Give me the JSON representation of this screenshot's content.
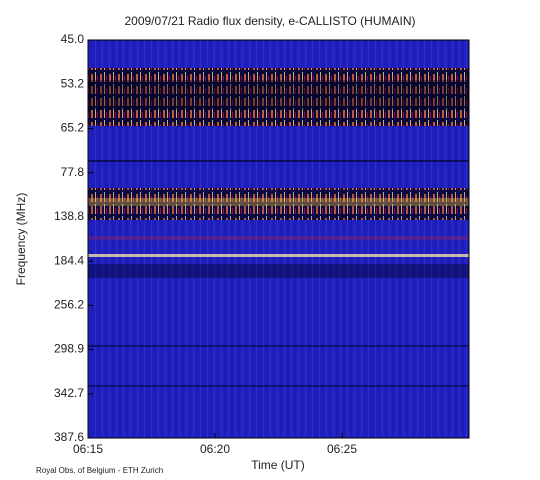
{
  "chart_data": {
    "type": "heatmap",
    "title": "2009/07/21  Radio flux density, e-CALLISTO (HUMAIN)",
    "xlabel": "Time (UT)",
    "ylabel": "Frequency (MHz)",
    "footer": "Royal Obs. of Belgium - ETH Zurich",
    "xlim": [
      "06:15",
      "06:30"
    ],
    "xticks": [
      "06:15",
      "06:20",
      "06:25"
    ],
    "yticks": [
      {
        "value": 45,
        "label": "45.0"
      },
      {
        "value": 53.2,
        "label": "53.2"
      },
      {
        "value": 65.2,
        "label": "65.2"
      },
      {
        "value": 77.8,
        "label": "77.8"
      },
      {
        "value": 138.8,
        "label": "138.8"
      },
      {
        "value": 184.4,
        "label": "184.4"
      },
      {
        "value": 256.2,
        "label": "256.2"
      },
      {
        "value": 298.9,
        "label": "298.9"
      },
      {
        "value": 342.7,
        "label": "342.7"
      },
      {
        "value": 387.6,
        "label": "387.6"
      }
    ]
  }
}
